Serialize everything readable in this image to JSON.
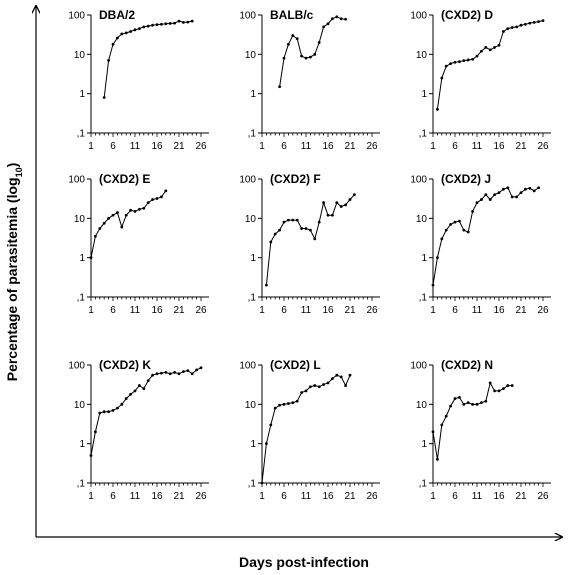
{
  "figure": {
    "ylabel": "Percentage of parasitemia",
    "ylabel_sub": "10",
    "xlabel": "Days post-infection"
  },
  "chart_data": [
    {
      "type": "line",
      "title": "DBA/2",
      "y_scale": "log",
      "ylim": [
        0.1,
        100
      ],
      "xlim": [
        1,
        26
      ],
      "y_ticks": [
        "100",
        "10",
        "1",
        ",1"
      ],
      "x_ticks": [
        "1",
        "6",
        "11",
        "16",
        "21",
        "26"
      ],
      "x": [
        4,
        5,
        6,
        7,
        8,
        9,
        10,
        11,
        12,
        13,
        14,
        15,
        16,
        17,
        18,
        19,
        20,
        21,
        22,
        23,
        24
      ],
      "y": [
        0.8,
        7,
        18,
        26,
        33,
        35,
        38,
        42,
        45,
        50,
        52,
        55,
        57,
        58,
        60,
        61,
        62,
        70,
        65,
        66,
        70
      ]
    },
    {
      "type": "line",
      "title": "BALB/c",
      "y_scale": "log",
      "ylim": [
        0.1,
        100
      ],
      "xlim": [
        1,
        26
      ],
      "y_ticks": [
        "100",
        "10",
        "1",
        ",1"
      ],
      "x_ticks": [
        "1",
        "6",
        "11",
        "16",
        "21",
        "26"
      ],
      "x": [
        5,
        6,
        7,
        8,
        9,
        10,
        11,
        12,
        13,
        14,
        15,
        16,
        17,
        18,
        19,
        20
      ],
      "y": [
        1.5,
        8,
        18,
        30,
        25,
        9,
        8,
        8.5,
        10,
        20,
        50,
        60,
        80,
        90,
        80,
        78
      ]
    },
    {
      "type": "line",
      "title": "(CXD2) D",
      "y_scale": "log",
      "ylim": [
        0.1,
        100
      ],
      "xlim": [
        1,
        26
      ],
      "y_ticks": [
        "100",
        "10",
        "1",
        ",1"
      ],
      "x_ticks": [
        "1",
        "6",
        "11",
        "16",
        "21",
        "26"
      ],
      "x": [
        2,
        3,
        4,
        5,
        6,
        7,
        8,
        9,
        10,
        11,
        12,
        13,
        14,
        15,
        16,
        17,
        18,
        19,
        20,
        21,
        22,
        23,
        24,
        25,
        26
      ],
      "y": [
        0.4,
        2.5,
        5,
        5.8,
        6.3,
        6.5,
        6.9,
        7.2,
        7.5,
        9,
        12,
        15,
        13,
        15,
        17,
        38,
        45,
        48,
        50,
        55,
        58,
        62,
        65,
        68,
        72
      ]
    },
    {
      "type": "line",
      "title": "(CXD2) E",
      "y_scale": "log",
      "ylim": [
        0.1,
        100
      ],
      "xlim": [
        1,
        26
      ],
      "y_ticks": [
        "100",
        "10",
        "1",
        ",1"
      ],
      "x_ticks": [
        "1",
        "6",
        "11",
        "16",
        "21",
        "26"
      ],
      "x": [
        1,
        2,
        3,
        4,
        5,
        6,
        7,
        8,
        9,
        10,
        11,
        12,
        13,
        14,
        15,
        16,
        17,
        18
      ],
      "y": [
        1,
        3.5,
        5.5,
        7.5,
        10,
        12,
        14,
        6,
        12,
        16,
        15,
        17,
        18,
        25,
        30,
        32,
        35,
        50
      ]
    },
    {
      "type": "line",
      "title": "(CXD2) F",
      "y_scale": "log",
      "ylim": [
        0.1,
        100
      ],
      "xlim": [
        1,
        26
      ],
      "y_ticks": [
        "100",
        "10",
        "1",
        ",1"
      ],
      "x_ticks": [
        "1",
        "6",
        "11",
        "16",
        "21",
        "26"
      ],
      "x": [
        2,
        3,
        4,
        5,
        6,
        7,
        8,
        9,
        10,
        11,
        12,
        13,
        14,
        15,
        16,
        17,
        18,
        19,
        20,
        21,
        22
      ],
      "y": [
        0.2,
        2.5,
        4,
        5,
        8,
        9,
        9,
        9,
        5.5,
        5.5,
        5,
        3,
        8,
        25,
        12,
        12,
        25,
        20,
        22,
        30,
        40
      ]
    },
    {
      "type": "line",
      "title": "(CXD2) J",
      "y_scale": "log",
      "ylim": [
        0.1,
        100
      ],
      "xlim": [
        1,
        26
      ],
      "y_ticks": [
        "100",
        "10",
        "1",
        ",1"
      ],
      "x_ticks": [
        "1",
        "6",
        "11",
        "16",
        "21",
        "26"
      ],
      "x": [
        1,
        2,
        3,
        4,
        5,
        6,
        7,
        8,
        9,
        10,
        11,
        12,
        13,
        14,
        15,
        16,
        17,
        18,
        19,
        20,
        21,
        22,
        23,
        24,
        25
      ],
      "y": [
        0.2,
        1,
        3,
        5,
        7,
        8,
        8.5,
        5,
        4.5,
        15,
        25,
        30,
        40,
        30,
        40,
        45,
        55,
        60,
        35,
        35,
        45,
        55,
        58,
        50,
        60
      ]
    },
    {
      "type": "line",
      "title": "(CXD2) K",
      "y_scale": "log",
      "ylim": [
        0.1,
        100
      ],
      "xlim": [
        1,
        26
      ],
      "y_ticks": [
        "100",
        "10",
        "1",
        ",1"
      ],
      "x_ticks": [
        "1",
        "6",
        "11",
        "16",
        "21",
        "26"
      ],
      "x": [
        1,
        2,
        3,
        4,
        5,
        6,
        7,
        8,
        9,
        10,
        11,
        12,
        13,
        14,
        15,
        16,
        17,
        18,
        19,
        20,
        21,
        22,
        23,
        24,
        25,
        26
      ],
      "y": [
        0.5,
        2,
        6,
        6.5,
        6.5,
        7,
        8,
        10,
        14,
        18,
        22,
        30,
        25,
        40,
        55,
        60,
        62,
        65,
        60,
        65,
        60,
        68,
        72,
        60,
        75,
        85
      ]
    },
    {
      "type": "line",
      "title": "(CXD2) L",
      "y_scale": "log",
      "ylim": [
        0.1,
        100
      ],
      "xlim": [
        1,
        26
      ],
      "y_ticks": [
        "100",
        "10",
        "1",
        ",1"
      ],
      "x_ticks": [
        "1",
        "6",
        "11",
        "16",
        "21",
        "26"
      ],
      "x": [
        1,
        2,
        3,
        4,
        5,
        6,
        7,
        8,
        9,
        10,
        11,
        12,
        13,
        14,
        15,
        16,
        17,
        18,
        19,
        20,
        21
      ],
      "y": [
        0.1,
        1,
        3,
        8,
        9.5,
        10,
        10.5,
        11,
        12,
        20,
        22,
        28,
        30,
        28,
        32,
        35,
        45,
        55,
        50,
        30,
        55
      ]
    },
    {
      "type": "line",
      "title": "(CXD2) N",
      "y_scale": "log",
      "ylim": [
        0.1,
        100
      ],
      "xlim": [
        1,
        26
      ],
      "y_ticks": [
        "100",
        "10",
        "1",
        ",1"
      ],
      "x_ticks": [
        "1",
        "6",
        "11",
        "16",
        "21",
        "26"
      ],
      "x": [
        1,
        2,
        3,
        4,
        5,
        6,
        7,
        8,
        9,
        10,
        11,
        12,
        13,
        14,
        15,
        16,
        17,
        18,
        19
      ],
      "y": [
        2,
        0.4,
        3,
        5,
        9,
        14,
        15,
        10,
        11,
        10,
        10,
        11,
        12,
        35,
        22,
        22,
        25,
        30,
        30
      ]
    }
  ]
}
